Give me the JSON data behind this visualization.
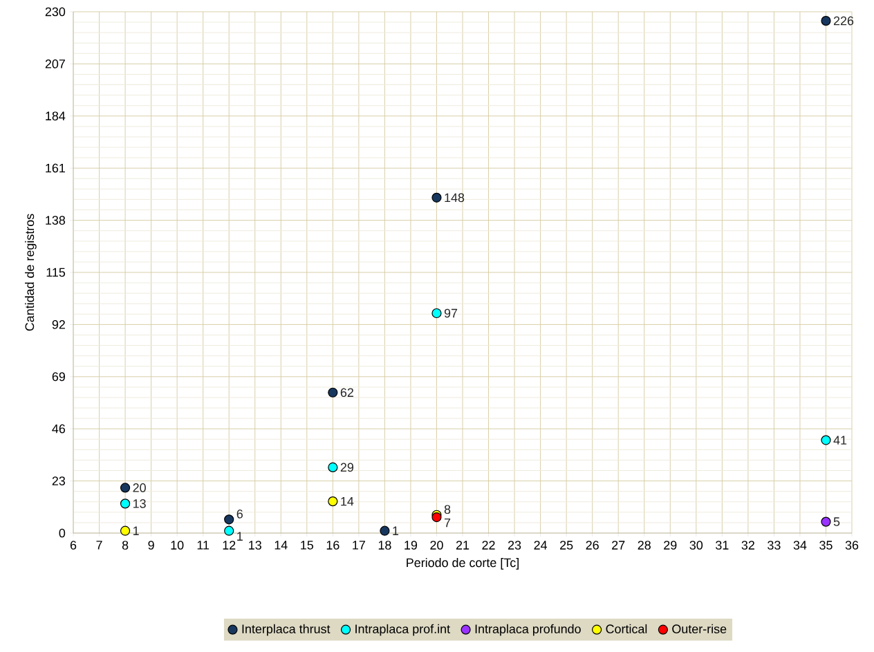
{
  "chart_data": {
    "type": "scatter",
    "xlabel": "Periodo de corte [Tc]",
    "ylabel": "Cantidad de registros",
    "xlim": [
      6,
      36
    ],
    "xticks": [
      6,
      7,
      8,
      9,
      10,
      11,
      12,
      13,
      14,
      15,
      16,
      17,
      18,
      19,
      20,
      21,
      22,
      23,
      24,
      25,
      26,
      27,
      28,
      29,
      30,
      31,
      32,
      33,
      34,
      35,
      36
    ],
    "ylim": [
      0,
      230
    ],
    "yticks": [
      0,
      23,
      46,
      69,
      92,
      115,
      138,
      161,
      184,
      207,
      230
    ],
    "grid": true,
    "legend": "bottom",
    "marker": "circle",
    "data_labels": true,
    "series": [
      {
        "name": "Interplaca thrust",
        "color": "#17375e",
        "x": [
          8,
          12,
          16,
          18,
          20,
          35
        ],
        "values": [
          20,
          6,
          62,
          1,
          148,
          226
        ]
      },
      {
        "name": "Intraplaca prof.int",
        "color": "#00ffff",
        "x": [
          8,
          12,
          16,
          20,
          35
        ],
        "values": [
          13,
          1,
          29,
          97,
          41
        ]
      },
      {
        "name": "Intraplaca profundo",
        "color": "#9933ff",
        "x": [
          35
        ],
        "values": [
          5
        ]
      },
      {
        "name": "Cortical",
        "color": "#ffff00",
        "x": [
          8,
          16,
          20
        ],
        "values": [
          1,
          14,
          8
        ]
      },
      {
        "name": "Outer-rise",
        "color": "#ff0000",
        "x": [
          20
        ],
        "values": [
          7
        ]
      }
    ]
  }
}
